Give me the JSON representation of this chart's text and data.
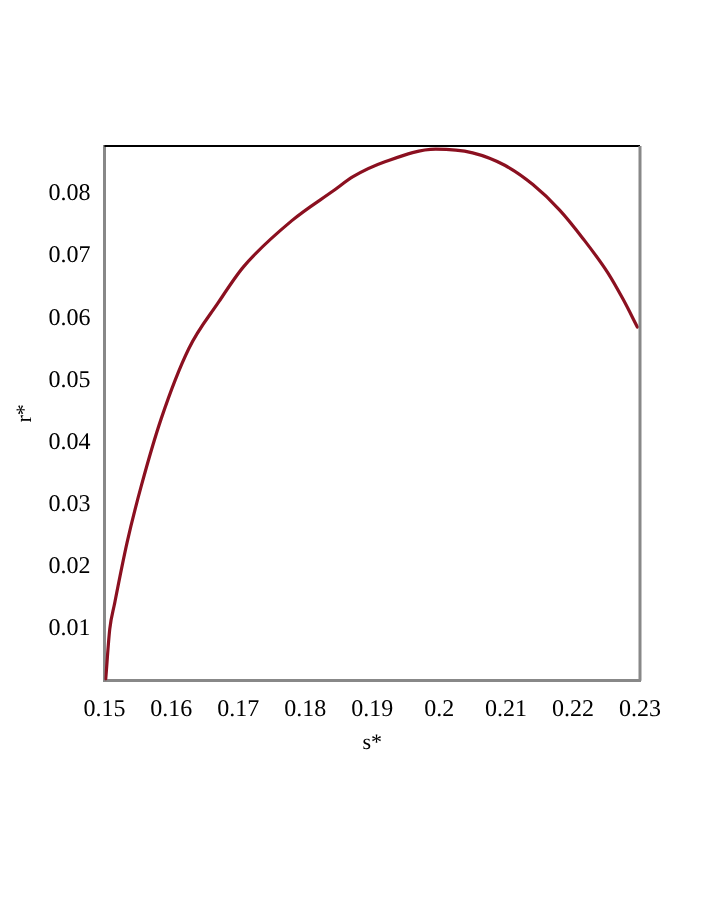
{
  "chart_data": {
    "type": "line",
    "xlabel": "s*",
    "ylabel": "r*",
    "series": [
      {
        "color": "#8b1020",
        "x": [
          0.1502,
          0.1508,
          0.1515,
          0.1534,
          0.1555,
          0.1585,
          0.1626,
          0.167,
          0.1708,
          0.178,
          0.1842,
          0.1872,
          0.192,
          0.1995,
          0.205,
          0.2098,
          0.214,
          0.218,
          0.2215,
          0.2252,
          0.2275,
          0.2296
        ],
        "values": [
          0.002,
          0.01,
          0.014,
          0.024,
          0.033,
          0.0439,
          0.0551,
          0.0625,
          0.0683,
          0.0757,
          0.0805,
          0.0828,
          0.0852,
          0.0872,
          0.0866,
          0.0846,
          0.0815,
          0.0774,
          0.0728,
          0.0673,
          0.063,
          0.0586
        ]
      }
    ],
    "xlim": [
      0.15,
      0.23
    ],
    "xticks": [
      0.15,
      0.16,
      0.17,
      0.18,
      0.19,
      0.2,
      0.21,
      0.22,
      0.23
    ],
    "ylim": [
      0.0017,
      0.0877
    ],
    "yticks": [
      0.01,
      0.02,
      0.03,
      0.04,
      0.05,
      0.06,
      0.07,
      0.08
    ],
    "grid": false,
    "legend": false,
    "marker": "none",
    "line_style": "solid"
  }
}
